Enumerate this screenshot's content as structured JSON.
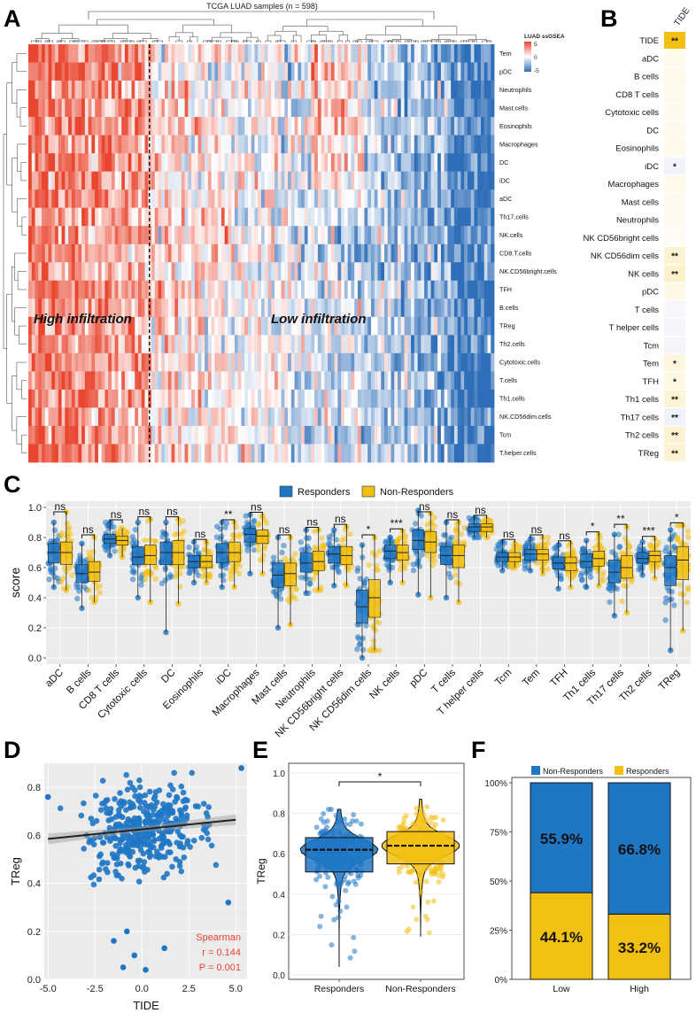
{
  "panel_letters": [
    "A",
    "B",
    "C",
    "D",
    "E",
    "F"
  ],
  "colors": {
    "responders": "#1f77c4",
    "non_responders": "#f2c012",
    "heat_high": "#e8462f",
    "heat_low": "#2f6eb8",
    "trend_line": "#222222",
    "spearman_text": "#e8462f"
  },
  "chart_data": [
    {
      "panel": "A",
      "type": "heatmap",
      "title": "TCGA LUAD samples (n = 598)",
      "legend_title": "LUAD ssGSEA",
      "legend_ticks": [
        "5",
        "0",
        "-5"
      ],
      "color_range": [
        -5,
        5
      ],
      "rows": [
        "Tem",
        "pDC",
        "Neutrophils",
        "Mast.cells",
        "Eosinophils",
        "Macrophages",
        "DC",
        "iDC",
        "aDC",
        "Th17.cells",
        "NK.cells",
        "CD8.T.cells",
        "NK.CD56bright.cells",
        "TFH",
        "B.cells",
        "TReg",
        "Th2.cells",
        "Cytotoxic.cells",
        "T.cells",
        "Th1.cells",
        "NK.CD56dim.cells",
        "Tcm",
        "T.helper.cells"
      ],
      "n_samples": 598,
      "cluster_split_fraction": 0.26,
      "annotations": [
        "High infiltration",
        "Low infiltration"
      ]
    },
    {
      "panel": "B",
      "type": "heatmap",
      "column": "TIDE",
      "rows": [
        "TIDE",
        "aDC",
        "B cells",
        "CD8 T cells",
        "Cytotoxic cells",
        "DC",
        "Eosinophils",
        "iDC",
        "Macrophages",
        "Mast cells",
        "Neutrophils",
        "NK CD56bright cells",
        "NK CD56dim cells",
        "NK cells",
        "pDC",
        "T cells",
        "T helper cells",
        "Tcm",
        "Tem",
        "TFH",
        "Th1 cells",
        "Th17 cells",
        "Th2 cells",
        "TReg"
      ],
      "correlations": [
        1.0,
        0.04,
        0.05,
        0.04,
        0.03,
        0.05,
        0.05,
        -0.12,
        0.05,
        0.03,
        0.03,
        0.0,
        0.16,
        0.18,
        0.06,
        -0.04,
        -0.06,
        -0.08,
        0.1,
        0.09,
        0.14,
        -0.14,
        0.15,
        0.144
      ],
      "significance": [
        "**",
        "",
        "",
        "",
        "",
        "",
        "",
        "*",
        "",
        "",
        "",
        "",
        "**",
        "**",
        "",
        "",
        "",
        "",
        "*",
        "*",
        "**",
        "**",
        "**",
        "**"
      ]
    },
    {
      "panel": "C",
      "type": "box",
      "ylabel": "score",
      "ylim": [
        0,
        1.0
      ],
      "yticks": [
        "0.0",
        "0.2",
        "0.4",
        "0.6",
        "0.8",
        "1.0"
      ],
      "legend": [
        "Responders",
        "Non-Responders"
      ],
      "categories": [
        "aDC",
        "B cells",
        "CD8 T cells",
        "Cytotoxic cells",
        "DC",
        "Eosinophils",
        "iDC",
        "Macrophages",
        "Mast cells",
        "Neutrophils",
        "NK CD56bright cells",
        "NK CD56dim cells",
        "NK cells",
        "pDC",
        "T cells",
        "T helper cells",
        "Tcm",
        "Tem",
        "TFH",
        "Th1 cells",
        "Th17 cells",
        "Th2 cells",
        "TReg"
      ],
      "significance": [
        "ns",
        "ns",
        "ns",
        "ns",
        "ns",
        "ns",
        "**",
        "ns",
        "ns",
        "ns",
        "ns",
        "*",
        "***",
        "ns",
        "ns",
        "ns",
        "ns",
        "ns",
        "ns",
        "*",
        "**",
        "***",
        "*"
      ],
      "series": [
        {
          "name": "Responders",
          "stats": [
            [
              0.47,
              0.63,
              0.7,
              0.76,
              0.9
            ],
            [
              0.33,
              0.5,
              0.56,
              0.62,
              0.76
            ],
            [
              0.68,
              0.76,
              0.79,
              0.82,
              0.9
            ],
            [
              0.4,
              0.62,
              0.67,
              0.74,
              0.9
            ],
            [
              0.17,
              0.62,
              0.7,
              0.77,
              0.9
            ],
            [
              0.5,
              0.6,
              0.64,
              0.68,
              0.77
            ],
            [
              0.47,
              0.63,
              0.7,
              0.76,
              0.9
            ],
            [
              0.56,
              0.77,
              0.82,
              0.86,
              0.95
            ],
            [
              0.2,
              0.47,
              0.55,
              0.63,
              0.8
            ],
            [
              0.43,
              0.57,
              0.63,
              0.7,
              0.85
            ],
            [
              0.48,
              0.63,
              0.69,
              0.74,
              0.85
            ],
            [
              0.0,
              0.23,
              0.34,
              0.45,
              0.75
            ],
            [
              0.5,
              0.66,
              0.71,
              0.75,
              0.8
            ],
            [
              0.42,
              0.72,
              0.78,
              0.85,
              0.98
            ],
            [
              0.4,
              0.62,
              0.68,
              0.74,
              0.9
            ],
            [
              0.8,
              0.84,
              0.87,
              0.89,
              0.93
            ],
            [
              0.58,
              0.64,
              0.67,
              0.7,
              0.77
            ],
            [
              0.58,
              0.65,
              0.69,
              0.72,
              0.79
            ],
            [
              0.46,
              0.59,
              0.63,
              0.67,
              0.75
            ],
            [
              0.47,
              0.6,
              0.64,
              0.69,
              0.78
            ],
            [
              0.28,
              0.5,
              0.57,
              0.65,
              0.82
            ],
            [
              0.55,
              0.63,
              0.66,
              0.7,
              0.77
            ],
            [
              0.05,
              0.48,
              0.6,
              0.68,
              0.85
            ]
          ]
        },
        {
          "name": "Non-Responders",
          "stats": [
            [
              0.45,
              0.62,
              0.7,
              0.77,
              0.97
            ],
            [
              0.37,
              0.51,
              0.57,
              0.64,
              0.8
            ],
            [
              0.67,
              0.75,
              0.78,
              0.81,
              0.86
            ],
            [
              0.37,
              0.62,
              0.68,
              0.75,
              0.92
            ],
            [
              0.36,
              0.62,
              0.7,
              0.78,
              0.92
            ],
            [
              0.5,
              0.6,
              0.64,
              0.68,
              0.77
            ],
            [
              0.47,
              0.64,
              0.7,
              0.77,
              0.9
            ],
            [
              0.56,
              0.76,
              0.81,
              0.85,
              0.94
            ],
            [
              0.22,
              0.48,
              0.56,
              0.63,
              0.8
            ],
            [
              0.45,
              0.58,
              0.64,
              0.71,
              0.85
            ],
            [
              0.48,
              0.62,
              0.68,
              0.74,
              0.87
            ],
            [
              0.05,
              0.27,
              0.4,
              0.52,
              0.8
            ],
            [
              0.5,
              0.65,
              0.7,
              0.75,
              0.84
            ],
            [
              0.4,
              0.7,
              0.77,
              0.84,
              0.96
            ],
            [
              0.37,
              0.6,
              0.68,
              0.75,
              0.9
            ],
            [
              0.8,
              0.84,
              0.87,
              0.89,
              0.92
            ],
            [
              0.6,
              0.64,
              0.67,
              0.7,
              0.76
            ],
            [
              0.56,
              0.65,
              0.69,
              0.72,
              0.8
            ],
            [
              0.47,
              0.58,
              0.63,
              0.67,
              0.76
            ],
            [
              0.48,
              0.61,
              0.66,
              0.71,
              0.82
            ],
            [
              0.3,
              0.53,
              0.6,
              0.68,
              0.87
            ],
            [
              0.53,
              0.64,
              0.68,
              0.71,
              0.79
            ],
            [
              0.18,
              0.52,
              0.65,
              0.74,
              0.88
            ]
          ]
        }
      ]
    },
    {
      "panel": "D",
      "type": "scatter",
      "xlabel": "TIDE",
      "ylabel": "TReg",
      "xlim": [
        -5.2,
        5.6
      ],
      "ylim": [
        0.0,
        0.9
      ],
      "xticks": [
        "-5.0",
        "-2.5",
        "0.0",
        "2.5",
        "5.0"
      ],
      "yticks": [
        "0.0",
        "0.2",
        "0.4",
        "0.6",
        "0.8"
      ],
      "fit_line": {
        "x": [
          -5.0,
          5.0
        ],
        "y": [
          0.585,
          0.665
        ]
      },
      "annotation": [
        "Spearman",
        "r = 0.144",
        "P = 0.001"
      ],
      "highlight_points": [
        [
          -5.0,
          0.76
        ],
        [
          5.3,
          0.88
        ],
        [
          4.6,
          0.32
        ],
        [
          -1.0,
          0.05
        ],
        [
          0.2,
          0.04
        ],
        [
          -1.5,
          0.16
        ],
        [
          -0.8,
          0.2
        ],
        [
          1.2,
          0.13
        ],
        [
          -0.4,
          0.1
        ]
      ]
    },
    {
      "panel": "E",
      "type": "violin",
      "ylabel": "TReg",
      "ylim": [
        0.0,
        1.0
      ],
      "yticks": [
        "0.0",
        "0.2",
        "0.4",
        "0.6",
        "0.8",
        "1.0"
      ],
      "categories": [
        "Responders",
        "Non-Responders"
      ],
      "stats": [
        [
          0.51,
          0.62,
          0.68,
          0.82,
          0.04
        ],
        [
          0.55,
          0.64,
          0.71,
          0.87,
          0.19
        ]
      ],
      "significance": "*"
    },
    {
      "panel": "F",
      "type": "bar",
      "stacked": true,
      "categories": [
        "Low",
        "High"
      ],
      "yticks": [
        "0%",
        "25%",
        "50%",
        "75%",
        "100%"
      ],
      "legend": [
        "Non-Responders",
        "Responders"
      ],
      "series": [
        {
          "name": "Non-Responders",
          "values": [
            55.9,
            66.8
          ]
        },
        {
          "name": "Responders",
          "values": [
            44.1,
            33.2
          ]
        }
      ],
      "labels": {
        "Non-Responders": [
          "55.9%",
          "66.8%"
        ],
        "Responders": [
          "44.1%",
          "33.2%"
        ]
      }
    }
  ]
}
